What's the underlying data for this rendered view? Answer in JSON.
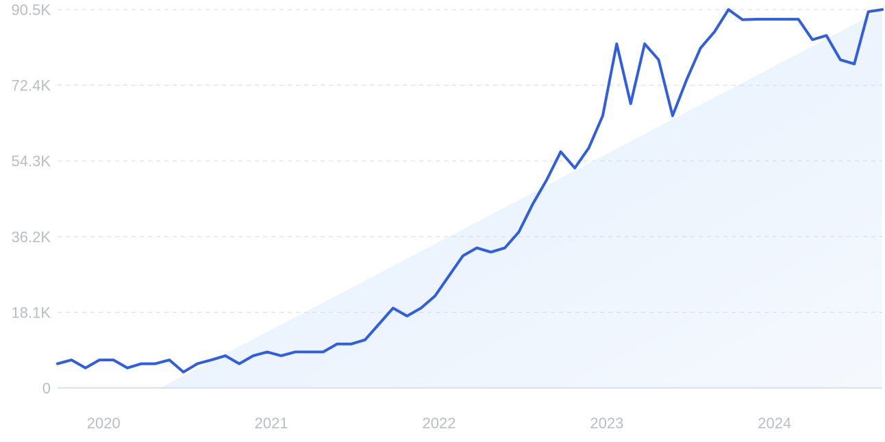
{
  "chart_data": {
    "type": "line",
    "title": "",
    "xlabel": "",
    "ylabel": "",
    "y_ticks": [
      "0",
      "18.1K",
      "36.2K",
      "54.3K",
      "72.4K",
      "90.5K"
    ],
    "y_tick_values": [
      0,
      18100,
      36200,
      54300,
      72400,
      90500
    ],
    "ylim": [
      0,
      90500
    ],
    "x_ticks": [
      "2020",
      "2021",
      "2022",
      "2023",
      "2024"
    ],
    "x_tick_values": [
      "2020-01",
      "2021-01",
      "2022-01",
      "2023-01",
      "2024-01"
    ],
    "xlim": [
      "2019-10",
      "2024-09"
    ],
    "grid": true,
    "trend_fill": true,
    "colors": {
      "line": "#2f5ee0",
      "trend_fill": "#e3eefc",
      "grid": "#d5dbe6",
      "tick_text": "#b8bdc7"
    },
    "x": [
      "2019-10",
      "2019-11",
      "2019-12",
      "2020-01",
      "2020-02",
      "2020-03",
      "2020-04",
      "2020-05",
      "2020-06",
      "2020-07",
      "2020-08",
      "2020-09",
      "2020-10",
      "2020-11",
      "2020-12",
      "2021-01",
      "2021-02",
      "2021-03",
      "2021-04",
      "2021-05",
      "2021-06",
      "2021-07",
      "2021-08",
      "2021-09",
      "2021-10",
      "2021-11",
      "2021-12",
      "2022-01",
      "2022-02",
      "2022-03",
      "2022-04",
      "2022-05",
      "2022-06",
      "2022-07",
      "2022-08",
      "2022-09",
      "2022-10",
      "2022-11",
      "2022-12",
      "2023-01",
      "2023-02",
      "2023-03",
      "2023-04",
      "2023-05",
      "2023-06",
      "2023-07",
      "2023-08",
      "2023-09",
      "2023-10",
      "2023-11",
      "2023-12",
      "2024-01",
      "2024-02",
      "2024-03",
      "2024-04",
      "2024-05",
      "2024-06",
      "2024-07",
      "2024-08",
      "2024-09"
    ],
    "series": [
      {
        "values": [
          5800,
          6700,
          4800,
          6700,
          6700,
          4800,
          5800,
          5800,
          6700,
          3800,
          5800,
          6700,
          7700,
          5800,
          7700,
          8600,
          7700,
          8600,
          8600,
          8600,
          10500,
          10500,
          11500,
          15300,
          19100,
          17200,
          19100,
          22000,
          26800,
          31600,
          33500,
          32500,
          33500,
          37300,
          44000,
          49800,
          56500,
          52600,
          57400,
          65100,
          82300,
          68000,
          82300,
          78500,
          65100,
          73700,
          81300,
          85200,
          90500,
          88100,
          88200,
          88200,
          88200,
          88200,
          83300,
          84300,
          78500,
          77500,
          90000,
          90500
        ]
      }
    ]
  }
}
